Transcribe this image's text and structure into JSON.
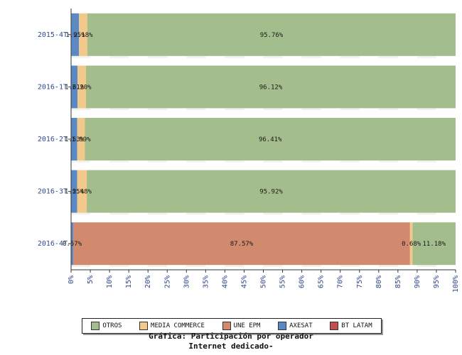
{
  "chart_data": {
    "type": "bar",
    "orientation": "horizontal",
    "stacked": true,
    "title": "Gráfica: Participación por operador Internet dedicado-",
    "title_line1": "Gráfica: Participación por operador",
    "title_line2": "Internet dedicado-",
    "xlabel": "",
    "ylabel": "",
    "xlim": [
      0,
      100
    ],
    "x_ticks": [
      "0%",
      "5%",
      "10%",
      "15%",
      "20%",
      "25%",
      "30%",
      "35%",
      "40%",
      "45%",
      "50%",
      "55%",
      "60%",
      "65%",
      "70%",
      "75%",
      "80%",
      "85%",
      "90%",
      "95%",
      "100%"
    ],
    "legend_position": "bottom",
    "categories": [
      "2015-4T",
      "2016-1T",
      "2016-2T",
      "2016-3T",
      "2016-4T"
    ],
    "series": [
      {
        "name": "BT LATAM",
        "color": "#c0504d",
        "values": [
          0.11,
          0.07,
          0.07,
          0.05,
          0.0
        ]
      },
      {
        "name": "AXESAT",
        "color": "#5b89c4",
        "values": [
          1.95,
          1.61,
          1.53,
          1.55,
          0.57
        ]
      },
      {
        "name": "UNE EPM",
        "color": "#d18a6e",
        "values": [
          0.0,
          0.0,
          0.0,
          0.0,
          87.57
        ]
      },
      {
        "name": "MEDIA COMMERCE",
        "color": "#f2c98a",
        "values": [
          2.18,
          2.2,
          1.99,
          2.48,
          0.68
        ]
      },
      {
        "name": "OTROS",
        "color": "#a3bd8c",
        "values": [
          95.76,
          96.12,
          96.41,
          95.92,
          11.18
        ]
      }
    ],
    "data_labels": [
      [
        "",
        "1.95%",
        "",
        "2.18%",
        "95.76%"
      ],
      [
        "",
        "1.61%",
        "",
        "2.20%",
        "96.12%"
      ],
      [
        "",
        "1.53%",
        "",
        "1.99%",
        "96.41%"
      ],
      [
        "",
        "1.55%",
        "",
        "2.48%",
        "95.92%"
      ],
      [
        "",
        "0.57%",
        "87.57%",
        "0.68%",
        "11.18%"
      ]
    ],
    "legend_order": [
      "OTROS",
      "MEDIA COMMERCE",
      "UNE EPM",
      "AXESAT",
      "BT LATAM"
    ]
  }
}
